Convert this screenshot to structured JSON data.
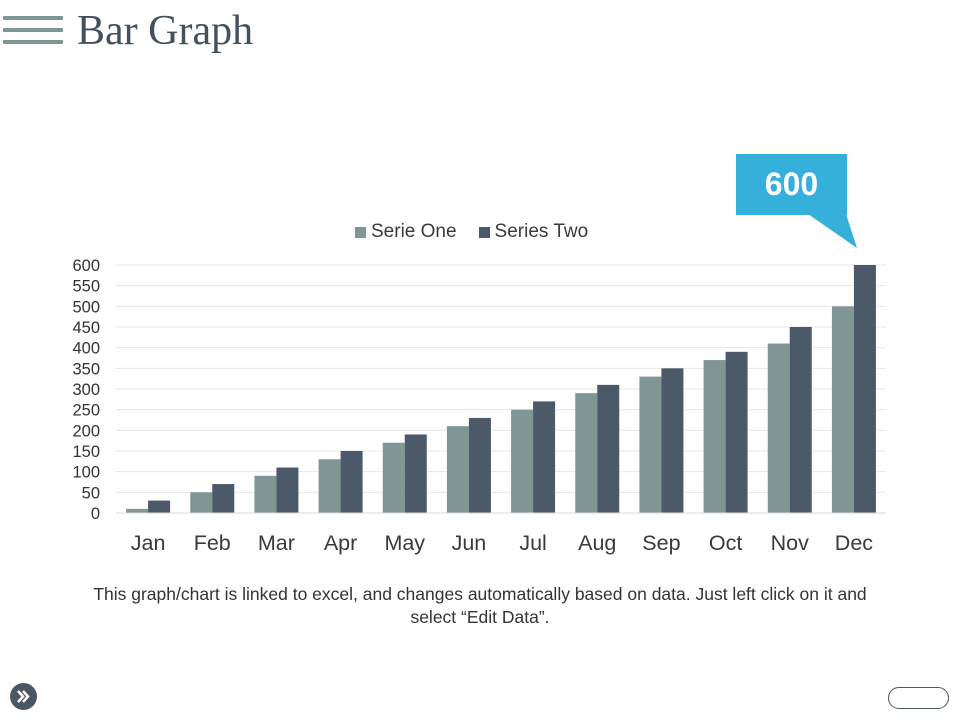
{
  "header": {
    "title": "Bar Graph",
    "menu_icon": "hamburger-menu-icon"
  },
  "callout": {
    "value": "600"
  },
  "footnote": "This graph/chart is linked to excel, and changes automatically based on data. Just left click on it and select “Edit Data”.",
  "colors": {
    "serie_one": "#7f9694",
    "series_two": "#4b5969",
    "callout": "#35b0db",
    "title": "#44505b"
  },
  "nav": {
    "next_icon": "double-chevron-right-icon"
  },
  "chart_data": {
    "type": "bar",
    "categories": [
      "Jan",
      "Feb",
      "Mar",
      "Apr",
      "May",
      "Jun",
      "Jul",
      "Aug",
      "Sep",
      "Oct",
      "Nov",
      "Dec"
    ],
    "series": [
      {
        "name": "Serie One",
        "values": [
          10,
          50,
          90,
          130,
          170,
          210,
          250,
          290,
          330,
          370,
          410,
          500
        ]
      },
      {
        "name": "Series Two",
        "values": [
          30,
          70,
          110,
          150,
          190,
          230,
          270,
          310,
          350,
          390,
          450,
          600
        ]
      }
    ],
    "yticks": [
      0,
      50,
      100,
      150,
      200,
      250,
      300,
      350,
      400,
      450,
      500,
      550,
      600
    ],
    "ylim": [
      0,
      600
    ],
    "legend_position": "top",
    "grid": true
  }
}
